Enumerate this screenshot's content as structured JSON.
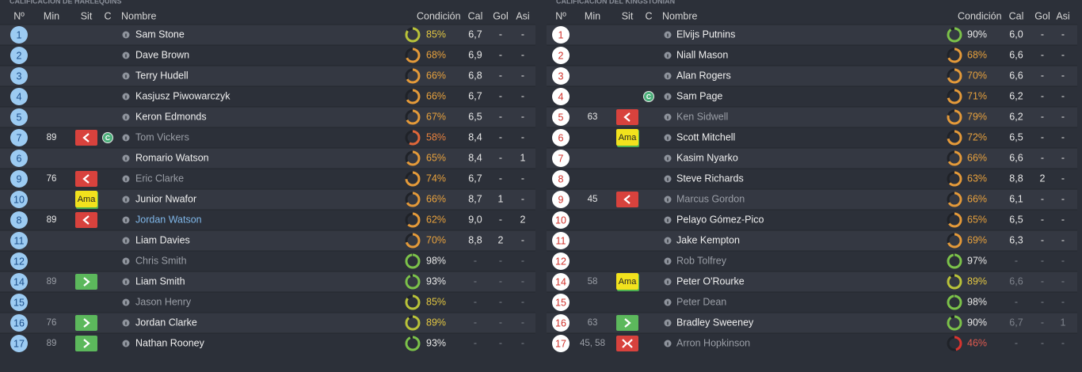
{
  "left": {
    "title": "CALIFICACIÓN DE HARLEQUINS",
    "headers": [
      "Nº",
      "Min",
      "Sit",
      "C",
      "Nombre",
      "Condición",
      "Cal",
      "Gol",
      "Asi"
    ],
    "rows": [
      {
        "no": 1,
        "name": "Sam Stone",
        "cond": "85%",
        "cal": "6,7",
        "gol": "-",
        "asi": "-"
      },
      {
        "no": 2,
        "name": "Dave Brown",
        "cond": "68%",
        "cal": "6,9",
        "gol": "-",
        "asi": "-"
      },
      {
        "no": 3,
        "name": "Terry Hudell",
        "cond": "66%",
        "cal": "6,8",
        "gol": "-",
        "asi": "-"
      },
      {
        "no": 4,
        "name": "Kasjusz Piwowarczyk",
        "cond": "66%",
        "cal": "6,7",
        "gol": "-",
        "asi": "-"
      },
      {
        "no": 5,
        "name": "Keron Edmonds",
        "cond": "67%",
        "cal": "6,5",
        "gol": "-",
        "asi": "-"
      },
      {
        "no": 7,
        "min": 89,
        "c": "C",
        "name": "Tom Vickers",
        "cond": "58%",
        "cal": "8,4",
        "gol": "-",
        "asi": "-"
      },
      {
        "no": 6,
        "name": "Romario Watson",
        "cond": "65%",
        "cal": "8,4",
        "gol": "-",
        "asi": 1
      },
      {
        "no": 9,
        "min": 76,
        "name": "Eric Clarke",
        "cond": "74%",
        "cal": "6,7",
        "gol": "-",
        "asi": "-"
      },
      {
        "no": 10,
        "sit": "Ama",
        "name": "Junior Nwafor",
        "cond": "66%",
        "cal": "8,7",
        "gol": 1,
        "asi": "-"
      },
      {
        "no": 8,
        "min": 89,
        "name": "Jordan Watson",
        "cond": "62%",
        "cal": "9,0",
        "gol": "-",
        "asi": 2
      },
      {
        "no": 11,
        "name": "Liam Davies",
        "cond": "70%",
        "cal": "8,8",
        "gol": 2,
        "asi": "-"
      },
      {
        "no": 12,
        "name": "Chris Smith",
        "cond": "98%",
        "cal": "-",
        "gol": "-",
        "asi": "-"
      },
      {
        "no": 14,
        "min": 89,
        "name": "Liam Smith",
        "cond": "93%",
        "cal": "-",
        "gol": "-",
        "asi": "-"
      },
      {
        "no": 15,
        "name": "Jason Henry",
        "cond": "85%",
        "cal": "-",
        "gol": "-",
        "asi": "-"
      },
      {
        "no": 16,
        "min": 76,
        "name": "Jordan Clarke",
        "cond": "89%",
        "cal": "-",
        "gol": "-",
        "asi": "-"
      },
      {
        "no": 17,
        "min": 89,
        "name": "Nathan Rooney",
        "cond": "93%",
        "cal": "-",
        "gol": "-",
        "asi": "-"
      }
    ]
  },
  "right": {
    "title": "CALIFICACIÓN DEL KINGSTONIAN",
    "headers": [
      "Nº",
      "Min",
      "Sit",
      "C",
      "Nombre",
      "Condición",
      "Cal",
      "Gol",
      "Asi"
    ],
    "rows": [
      {
        "no": 1,
        "name": "Elvijs Putnins",
        "cond": "90%",
        "cal": "6,0",
        "gol": "-",
        "asi": "-"
      },
      {
        "no": 2,
        "name": "Niall Mason",
        "cond": "68%",
        "cal": "6,6",
        "gol": "-",
        "asi": "-"
      },
      {
        "no": 3,
        "name": "Alan Rogers",
        "cond": "70%",
        "cal": "6,6",
        "gol": "-",
        "asi": "-"
      },
      {
        "no": 4,
        "c": "C",
        "name": "Sam Page",
        "cond": "71%",
        "cal": "6,2",
        "gol": "-",
        "asi": "-"
      },
      {
        "no": 5,
        "min": 63,
        "name": "Ken Sidwell",
        "cond": "79%",
        "cal": "6,2",
        "gol": "-",
        "asi": "-"
      },
      {
        "no": 6,
        "sit": "Ama",
        "name": "Scott Mitchell",
        "cond": "72%",
        "cal": "6,5",
        "gol": "-",
        "asi": "-"
      },
      {
        "no": 7,
        "name": "Kasim Nyarko",
        "cond": "66%",
        "cal": "6,6",
        "gol": "-",
        "asi": "-"
      },
      {
        "no": 8,
        "name": "Steve Richards",
        "cond": "63%",
        "cal": "8,8",
        "gol": 2,
        "asi": "-"
      },
      {
        "no": 9,
        "min": 45,
        "name": "Marcus Gordon",
        "cond": "66%",
        "cal": "6,1",
        "gol": "-",
        "asi": "-"
      },
      {
        "no": 10,
        "name": "Pelayo Gómez-Pico",
        "cond": "65%",
        "cal": "6,5",
        "gol": "-",
        "asi": "-"
      },
      {
        "no": 11,
        "name": "Jake Kempton",
        "cond": "69%",
        "cal": "6,3",
        "gol": "-",
        "asi": "-"
      },
      {
        "no": 12,
        "name": "Rob Tolfrey",
        "cond": "97%",
        "cal": "-",
        "gol": "-",
        "asi": "-"
      },
      {
        "no": 14,
        "min": 58,
        "sit": "Ama",
        "name": "Peter O'Rourke",
        "cond": "89%",
        "cal": "6,6",
        "gol": "-",
        "asi": "-"
      },
      {
        "no": 15,
        "name": "Peter Dean",
        "cond": "98%",
        "cal": "-",
        "gol": "-",
        "asi": "-"
      },
      {
        "no": 16,
        "min": 63,
        "name": "Bradley Sweeney",
        "cond": "90%",
        "cal": "6,7",
        "gol": "-",
        "asi": 1
      },
      {
        "no": 17,
        "min": "45, 58",
        "name": "Arron Hopkinson",
        "cond": "46%",
        "cal": "-",
        "gol": "-",
        "asi": "-"
      }
    ]
  }
}
